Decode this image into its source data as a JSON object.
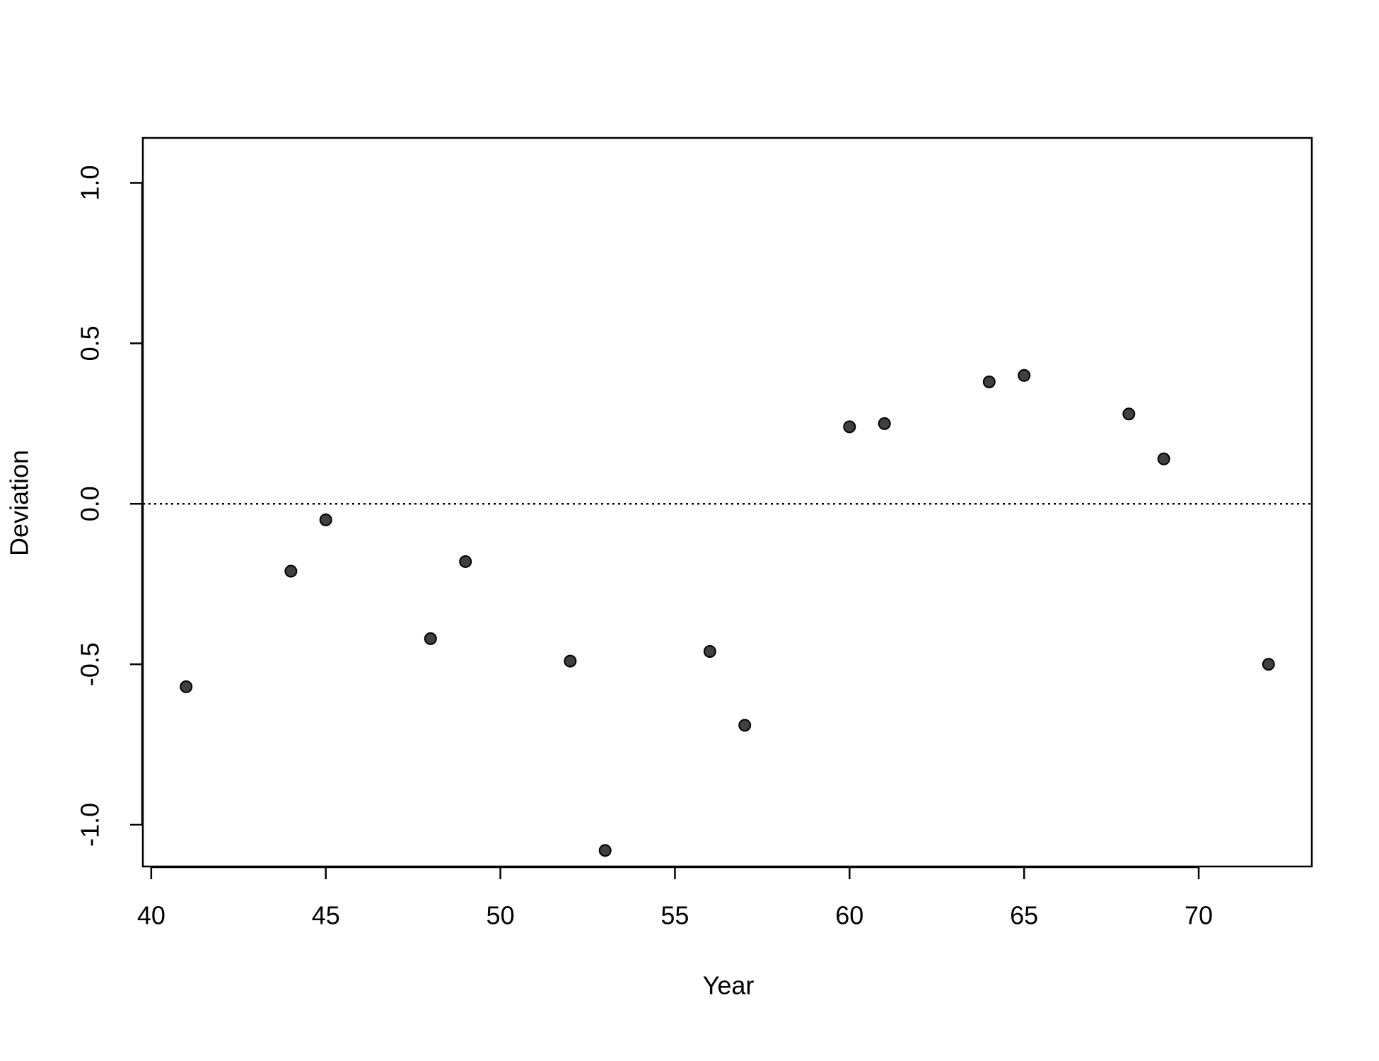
{
  "chart_data": {
    "type": "scatter",
    "x_label": "Year",
    "y_label": "Deviation",
    "x": [
      41,
      44,
      45,
      48,
      49,
      52,
      53,
      56,
      57,
      60,
      61,
      64,
      65,
      68,
      69,
      72
    ],
    "values": [
      -0.57,
      -0.21,
      -0.05,
      -0.42,
      -0.18,
      -0.49,
      -1.08,
      -0.46,
      -0.69,
      0.24,
      0.25,
      0.38,
      0.4,
      0.28,
      0.14,
      -0.5
    ],
    "color": "#404040",
    "xlim": [
      39.76,
      73.24
    ],
    "xticks": [
      40,
      45,
      50,
      55,
      60,
      65,
      70
    ],
    "ylim": [
      -1.13,
      1.14
    ],
    "yticks": [
      {
        "value": -1,
        "label": "-1.0"
      },
      {
        "value": -0.5,
        "label": "-0.5"
      },
      {
        "value": 0,
        "label": "0.0"
      },
      {
        "value": 0.5,
        "label": "0.5"
      },
      {
        "value": 1,
        "label": "1.0"
      }
    ],
    "hline": 0
  }
}
